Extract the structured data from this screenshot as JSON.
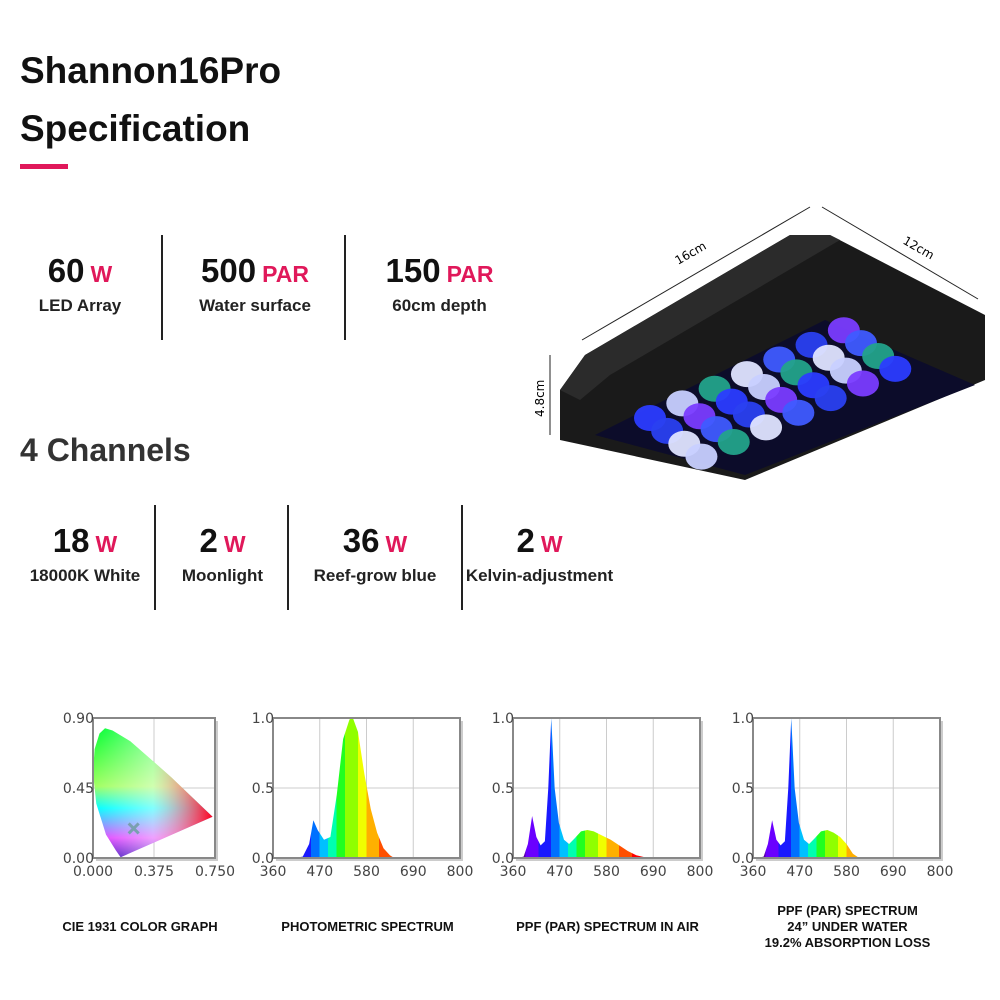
{
  "header": {
    "title": "Shannon16Pro",
    "subtitle": "Specification",
    "accent_color": "#e0185a"
  },
  "stats": [
    {
      "value": "60",
      "unit": "W",
      "label": "LED Array"
    },
    {
      "value": "500",
      "unit": "PAR",
      "label": "Water surface"
    },
    {
      "value": "150",
      "unit": "PAR",
      "label": "60cm depth"
    }
  ],
  "product": {
    "dim_length": "16cm",
    "dim_width": "12cm",
    "dim_height": "4.8cm"
  },
  "channels": {
    "title": "4 Channels",
    "items": [
      {
        "value": "18",
        "unit": "W",
        "label": "18000K White"
      },
      {
        "value": "2",
        "unit": "W",
        "label": "Moonlight"
      },
      {
        "value": "36",
        "unit": "W",
        "label": "Reef-grow blue"
      },
      {
        "value": "2",
        "unit": "W",
        "label": "Kelvin-adjustment"
      }
    ]
  },
  "chart_data": [
    {
      "type": "area",
      "caption": "CIE 1931 COLOR GRAPH",
      "x_ticks": [
        "0.000",
        "0.375",
        "0.750"
      ],
      "y_ticks": [
        "0.00",
        "0.45",
        "0.90"
      ],
      "xlim": [
        0,
        0.75
      ],
      "ylim": [
        0,
        0.9
      ],
      "grid": true,
      "marker": {
        "x": 0.25,
        "y": 0.19
      }
    },
    {
      "type": "area",
      "caption": "PHOTOMETRIC SPECTRUM",
      "x_ticks": [
        "360",
        "470",
        "580",
        "690",
        "800"
      ],
      "y_ticks": [
        "0.0",
        "0.5",
        "1.0"
      ],
      "xlim": [
        360,
        800
      ],
      "ylim": [
        0,
        1
      ],
      "grid": true,
      "x": [
        410,
        430,
        445,
        455,
        465,
        480,
        495,
        510,
        525,
        540,
        548,
        560,
        575,
        590,
        605,
        620,
        635,
        645
      ],
      "y": [
        0,
        0.01,
        0.1,
        0.27,
        0.2,
        0.13,
        0.15,
        0.45,
        0.85,
        0.99,
        1.0,
        0.9,
        0.6,
        0.35,
        0.18,
        0.07,
        0.02,
        0
      ]
    },
    {
      "type": "area",
      "caption": "PPF (PAR) SPECTRUM IN AIR",
      "x_ticks": [
        "360",
        "470",
        "580",
        "690",
        "800"
      ],
      "y_ticks": [
        "0.0",
        "0.5",
        "1.0"
      ],
      "xlim": [
        360,
        800
      ],
      "ylim": [
        0,
        1
      ],
      "grid": true,
      "x": [
        370,
        385,
        395,
        405,
        415,
        425,
        435,
        443,
        450,
        458,
        468,
        480,
        492,
        505,
        520,
        535,
        550,
        570,
        590,
        610,
        630,
        650,
        670,
        690
      ],
      "y": [
        0,
        0.01,
        0.1,
        0.3,
        0.15,
        0.09,
        0.12,
        0.5,
        1.0,
        0.5,
        0.25,
        0.13,
        0.1,
        0.14,
        0.19,
        0.2,
        0.19,
        0.16,
        0.13,
        0.09,
        0.05,
        0.02,
        0.005,
        0
      ]
    },
    {
      "type": "area",
      "caption": "PPF (PAR) SPECTRUM\n24”  UNDER WATER\n19.2% ABSORPTION LOSS",
      "x_ticks": [
        "360",
        "470",
        "580",
        "690",
        "800"
      ],
      "y_ticks": [
        "0.0",
        "0.5",
        "1.0"
      ],
      "xlim": [
        360,
        800
      ],
      "ylim": [
        0,
        1
      ],
      "grid": true,
      "x": [
        370,
        385,
        395,
        405,
        415,
        425,
        435,
        443,
        450,
        458,
        468,
        480,
        492,
        505,
        520,
        535,
        550,
        565,
        580,
        595,
        610
      ],
      "y": [
        0,
        0.01,
        0.1,
        0.27,
        0.13,
        0.09,
        0.12,
        0.5,
        1.0,
        0.5,
        0.25,
        0.13,
        0.1,
        0.14,
        0.19,
        0.2,
        0.18,
        0.15,
        0.1,
        0.03,
        0
      ]
    }
  ]
}
